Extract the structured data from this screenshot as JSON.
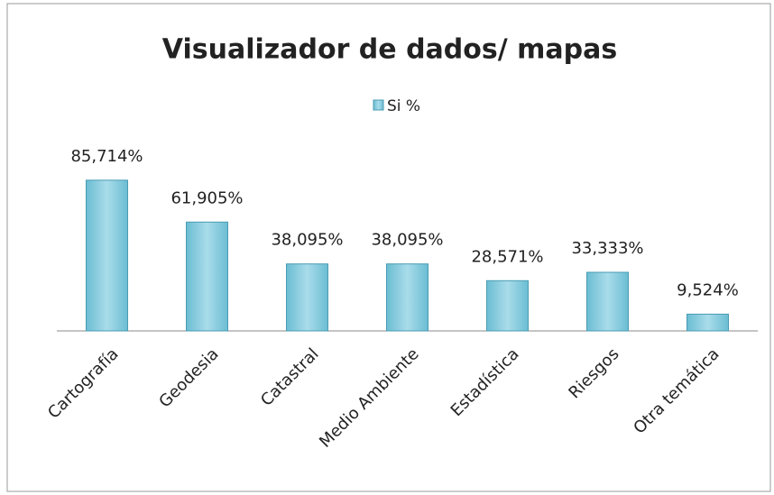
{
  "chart_data": {
    "type": "bar",
    "title": "Visualizador de dados/ mapas",
    "categories": [
      "Cartografía",
      "Geodesia",
      "Catastral",
      "Medio Ambiente",
      "Estadística",
      "Riesgos",
      "Otra temática"
    ],
    "series": [
      {
        "name": "Si %",
        "color": "#6bbdd3",
        "values": [
          85.714,
          61.905,
          38.095,
          38.095,
          28.571,
          33.333,
          9.524
        ],
        "value_labels": [
          "85,714%",
          "61,905%",
          "38,095%",
          "38,095%",
          "28,571%",
          "33,333%",
          "9,524%"
        ]
      }
    ],
    "legend": "top"
  }
}
